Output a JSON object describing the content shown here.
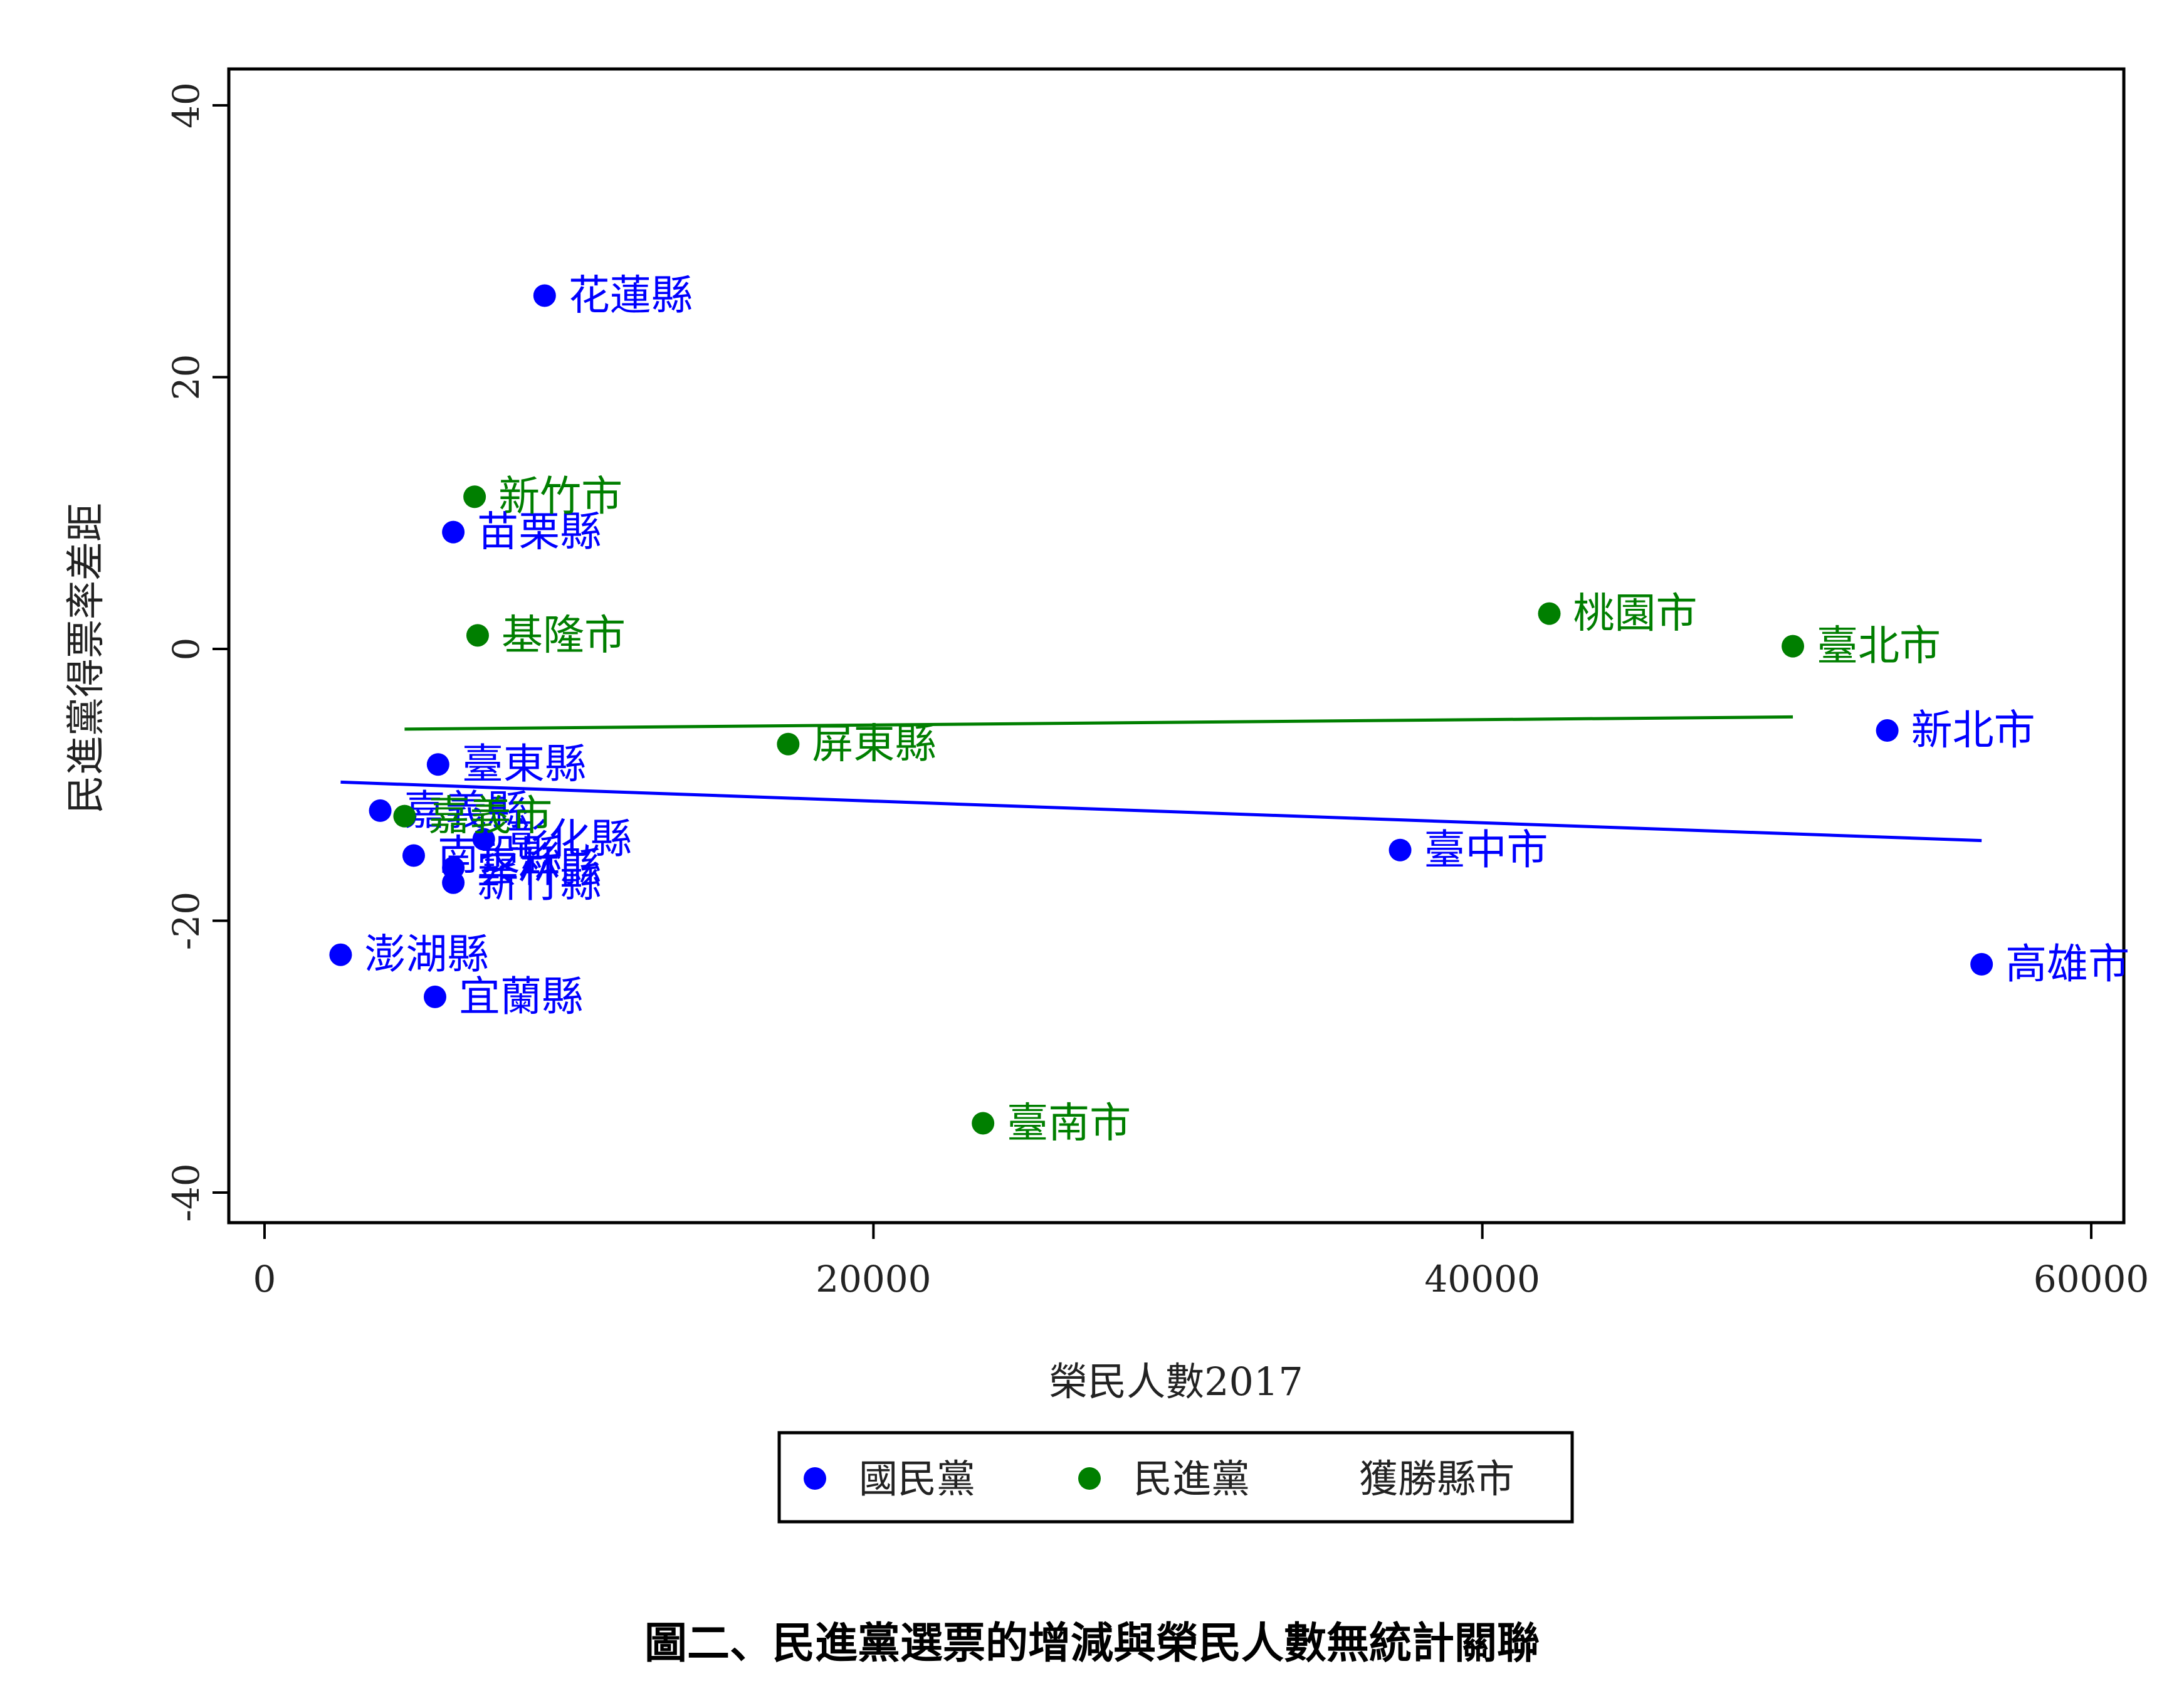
{
  "chart_data": {
    "type": "scatter",
    "xlabel": "榮民人數2017",
    "ylabel": "民進黨得票率差距",
    "xlim": [
      0,
      60000
    ],
    "ylim": [
      -40,
      40
    ],
    "xticks": [
      "0",
      "20000",
      "40000",
      "60000"
    ],
    "yticks": [
      "-40",
      "-20",
      "0",
      "20",
      "40"
    ],
    "xtick_values": [
      0,
      20000,
      40000,
      60000
    ],
    "ytick_values": [
      -40,
      -20,
      0,
      20,
      40
    ],
    "grid": false,
    "legend_position": "bottom",
    "legend_title": "獲勝縣市",
    "series": [
      {
        "name": "國民黨",
        "color": "#0000ff",
        "points": [
          {
            "label": "花蓮縣",
            "x": 9200,
            "y": 26
          },
          {
            "label": "苗栗縣",
            "x": 6200,
            "y": 8.6
          },
          {
            "label": "新北市",
            "x": 53300,
            "y": -6
          },
          {
            "label": "臺東縣",
            "x": 5700,
            "y": -8.5
          },
          {
            "label": "嘉義縣",
            "x": 3800,
            "y": -11.9
          },
          {
            "label": "彰化縣",
            "x": 7200,
            "y": -14
          },
          {
            "label": "臺中市",
            "x": 37300,
            "y": -14.8
          },
          {
            "label": "南投縣",
            "x": 4900,
            "y": -15.2
          },
          {
            "label": "雲林縣",
            "x": 6200,
            "y": -16.1
          },
          {
            "label": "新竹縣",
            "x": 6200,
            "y": -17.2
          },
          {
            "label": "澎湖縣",
            "x": 2500,
            "y": -22.5
          },
          {
            "label": "高雄市",
            "x": 56400,
            "y": -23.2
          },
          {
            "label": "宜蘭縣",
            "x": 5600,
            "y": -25.6
          }
        ],
        "fit": {
          "x": [
            2500,
            56400
          ],
          "y": [
            -9.8,
            -14.1
          ]
        }
      },
      {
        "name": "民進黨",
        "color": "#007f00",
        "points": [
          {
            "label": "新竹市",
            "x": 6900,
            "y": 11.2
          },
          {
            "label": "基隆市",
            "x": 7000,
            "y": 1.0
          },
          {
            "label": "桃園市",
            "x": 42200,
            "y": 2.6
          },
          {
            "label": "臺北市",
            "x": 50200,
            "y": 0.2
          },
          {
            "label": "屏東縣",
            "x": 17200,
            "y": -7.0
          },
          {
            "label": "嘉義市",
            "x": 4600,
            "y": -12.3
          },
          {
            "label": "臺南市",
            "x": 23600,
            "y": -34.9
          }
        ],
        "fit": {
          "x": [
            4600,
            50200
          ],
          "y": [
            -5.9,
            -5.0
          ]
        }
      }
    ]
  },
  "caption": "圖二、民進黨選票的增減與榮民人數無統計關聯"
}
